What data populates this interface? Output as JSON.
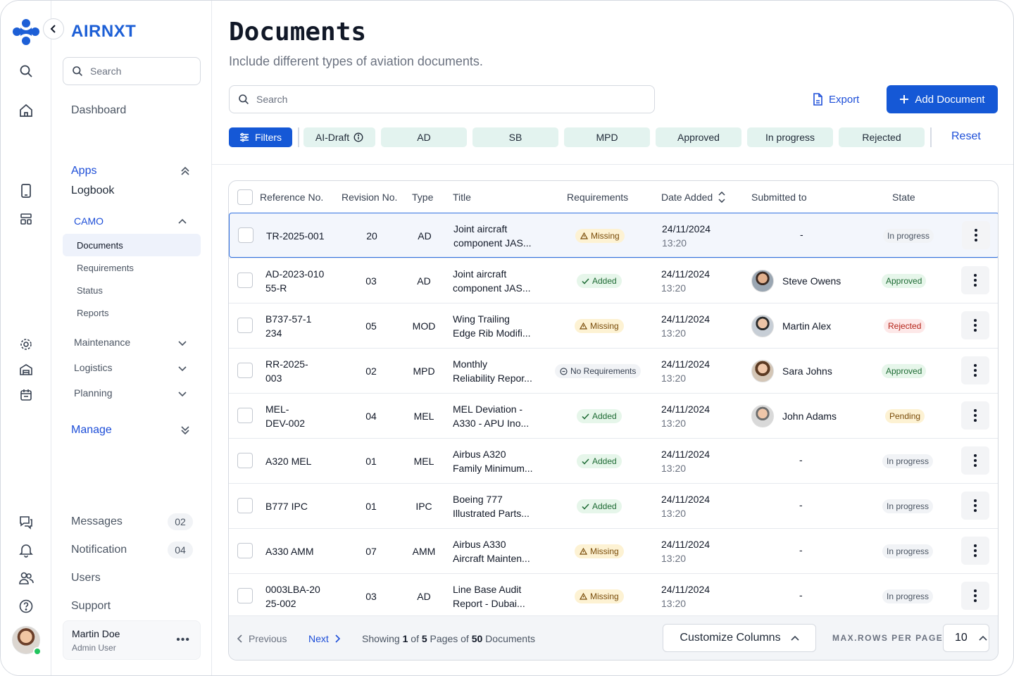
{
  "brand": "AIRNXT",
  "sidebar": {
    "search_placeholder": "Search",
    "dashboard": "Dashboard",
    "apps": "Apps",
    "logbook": "Logbook",
    "camo": "CAMO",
    "camo_items": [
      "Documents",
      "Requirements",
      "Status",
      "Reports"
    ],
    "maintenance": "Maintenance",
    "logistics": "Logistics",
    "planning": "Planning",
    "manage": "Manage",
    "messages": "Messages",
    "messages_count": "02",
    "notification": "Notification",
    "notification_count": "04",
    "users": "Users",
    "support": "Support",
    "user_name": "Martin Doe",
    "user_role": "Admin User"
  },
  "header": {
    "title": "Documents",
    "subtitle": "Include different types of aviation documents.",
    "search_placeholder": "Search",
    "export": "Export",
    "add_document": "Add Document"
  },
  "filters": {
    "filters_label": "Filters",
    "chips": [
      "AI-Draft",
      "AD",
      "SB",
      "MPD",
      "Approved",
      "In progress",
      "Rejected"
    ],
    "reset": "Reset"
  },
  "table": {
    "columns": [
      "Reference No.",
      "Revision No.",
      "Type",
      "Title",
      "Requirements",
      "Date Added",
      "Submitted to",
      "State"
    ],
    "rows": [
      {
        "ref": [
          "TR-2025-001"
        ],
        "rev": "20",
        "type": "AD",
        "title": [
          "Joint aircraft",
          "component JAS..."
        ],
        "req": "Missing",
        "date": "24/11/2024",
        "time": "13:20",
        "submitted": "-",
        "state": "In progress"
      },
      {
        "ref": [
          "AD-2023-010",
          "55-R"
        ],
        "rev": "03",
        "type": "AD",
        "title": [
          "Joint aircraft",
          "component JAS..."
        ],
        "req": "Added",
        "date": "24/11/2024",
        "time": "13:20",
        "submitted": "Steve Owens",
        "state": "Approved"
      },
      {
        "ref": [
          "B737-57-1",
          "234"
        ],
        "rev": "05",
        "type": "MOD",
        "title": [
          "Wing Trailing",
          "Edge Rib Modifi..."
        ],
        "req": "Missing",
        "date": "24/11/2024",
        "time": "13:20",
        "submitted": "Martin Alex",
        "state": "Rejected"
      },
      {
        "ref": [
          "RR-2025-",
          "003"
        ],
        "rev": "02",
        "type": "MPD",
        "title": [
          "Monthly",
          "Reliability Repor..."
        ],
        "req": "No Requirements",
        "date": "24/11/2024",
        "time": "13:20",
        "submitted": "Sara Johns",
        "state": "Approved"
      },
      {
        "ref": [
          "MEL-",
          "DEV-002"
        ],
        "rev": "04",
        "type": "MEL",
        "title": [
          "MEL Deviation -",
          "A330 - APU Ino..."
        ],
        "req": "Added",
        "date": "24/11/2024",
        "time": "13:20",
        "submitted": "John Adams",
        "state": "Pending"
      },
      {
        "ref": [
          "A320 MEL"
        ],
        "rev": "01",
        "type": "MEL",
        "title": [
          "Airbus A320",
          "Family Minimum..."
        ],
        "req": "Added",
        "date": "24/11/2024",
        "time": "13:20",
        "submitted": "-",
        "state": "In progress"
      },
      {
        "ref": [
          "B777 IPC"
        ],
        "rev": "01",
        "type": "IPC",
        "title": [
          "Boeing 777",
          "Illustrated Parts..."
        ],
        "req": "Added",
        "date": "24/11/2024",
        "time": "13:20",
        "submitted": "-",
        "state": "In progress"
      },
      {
        "ref": [
          "A330 AMM"
        ],
        "rev": "07",
        "type": "AMM",
        "title": [
          "Airbus A330",
          "Aircraft Mainten..."
        ],
        "req": "Missing",
        "date": "24/11/2024",
        "time": "13:20",
        "submitted": "-",
        "state": "In progress"
      },
      {
        "ref": [
          "0003LBA-20",
          "25-002"
        ],
        "rev": "03",
        "type": "AD",
        "title": [
          "Line Base Audit",
          "Report - Dubai..."
        ],
        "req": "Missing",
        "date": "24/11/2024",
        "time": "13:20",
        "submitted": "-",
        "state": "In progress"
      }
    ]
  },
  "footer": {
    "previous": "Previous",
    "next": "Next",
    "showing_prefix": "Showing",
    "current_page": "1",
    "of_text": "of",
    "total_pages": "5",
    "pages_of_text": "Pages of",
    "total_docs": "50",
    "docs_text": "Documents",
    "customize_columns": "Customize Columns",
    "max_rows_label": "MAX.ROWS PER PAGE",
    "max_rows_value": "10"
  },
  "colors": {
    "accent": "#1558d6",
    "chip_bg": "#e3f3ef",
    "selected_row": "#f3f6fc"
  }
}
